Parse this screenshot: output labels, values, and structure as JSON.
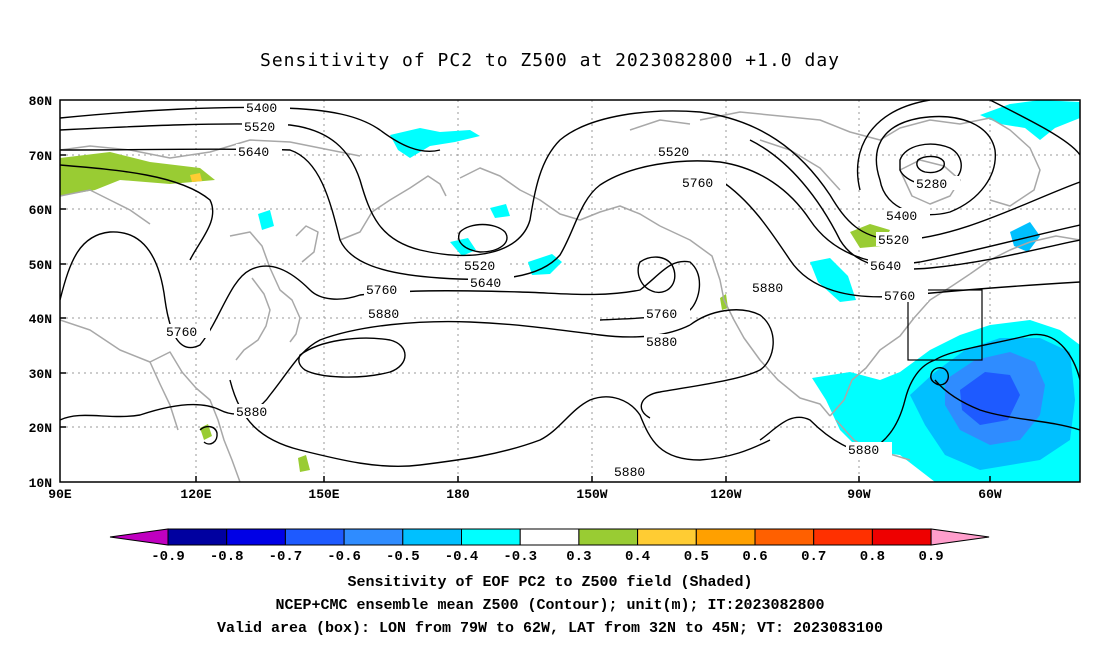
{
  "title": "Sensitivity of PC2 to Z500 at 2023082800 +1.0 day",
  "map": {
    "lat_labels": [
      "80N",
      "70N",
      "60N",
      "50N",
      "40N",
      "30N",
      "20N",
      "10N"
    ],
    "lon_labels": [
      "90E",
      "120E",
      "150E",
      "180",
      "150W",
      "120W",
      "90W",
      "60W"
    ],
    "contour_labels": [
      {
        "text": "5400",
        "name": "contour-label-5400-west"
      },
      {
        "text": "5520",
        "name": "contour-label-5520-west"
      },
      {
        "text": "5640",
        "name": "contour-label-5640-west"
      },
      {
        "text": "5760",
        "name": "contour-label-5760-asia"
      },
      {
        "text": "5880",
        "name": "contour-label-5880-asia"
      },
      {
        "text": "5760",
        "name": "contour-label-5760-pacific"
      },
      {
        "text": "5880",
        "name": "contour-label-5880-pacific"
      },
      {
        "text": "5520",
        "name": "contour-label-5520-pacific"
      },
      {
        "text": "5640",
        "name": "contour-label-5640-pacific"
      },
      {
        "text": "5520",
        "name": "contour-label-5520-north"
      },
      {
        "text": "5760",
        "name": "contour-label-5760-north"
      },
      {
        "text": "5760",
        "name": "contour-label-5760-east-pacific"
      },
      {
        "text": "5880",
        "name": "contour-label-5880-east-pacific"
      },
      {
        "text": "5880",
        "name": "contour-label-5880-south"
      },
      {
        "text": "5880",
        "name": "contour-label-5880-america"
      },
      {
        "text": "5280",
        "name": "contour-label-5280"
      },
      {
        "text": "5400",
        "name": "contour-label-5400-east"
      },
      {
        "text": "5520",
        "name": "contour-label-5520-east"
      },
      {
        "text": "5640",
        "name": "contour-label-5640-east"
      },
      {
        "text": "5760",
        "name": "contour-label-5760-east"
      },
      {
        "text": "5880",
        "name": "contour-label-5880-caribbean"
      }
    ],
    "valid_box": {
      "lon_min": "79W",
      "lon_max": "62W",
      "lat_min": "32N",
      "lat_max": "45N"
    }
  },
  "colorbar": {
    "labels": [
      "-0.9",
      "-0.8",
      "-0.7",
      "-0.6",
      "-0.5",
      "-0.4",
      "-0.3",
      "0.3",
      "0.4",
      "0.5",
      "0.6",
      "0.7",
      "0.8",
      "0.9"
    ],
    "colors": [
      "#0000a0",
      "#0000e6",
      "#1e5aff",
      "#2f8cff",
      "#00c0ff",
      "#00ffff",
      "#ffffff",
      "#99cc33",
      "#ffcc33",
      "#ffa000",
      "#ff6000",
      "#ff3000",
      "#ee0000"
    ],
    "low_end_color": "#c000c0",
    "high_end_color": "#ff9ecc"
  },
  "captions": [
    "Sensitivity of EOF PC2 to Z500 field (Shaded)",
    "NCEP+CMC ensemble mean Z500 (Contour); unit(m); IT:2023082800",
    "Valid area (box): LON from 79W to 62W, LAT from 32N to 45N; VT: 2023083100"
  ]
}
